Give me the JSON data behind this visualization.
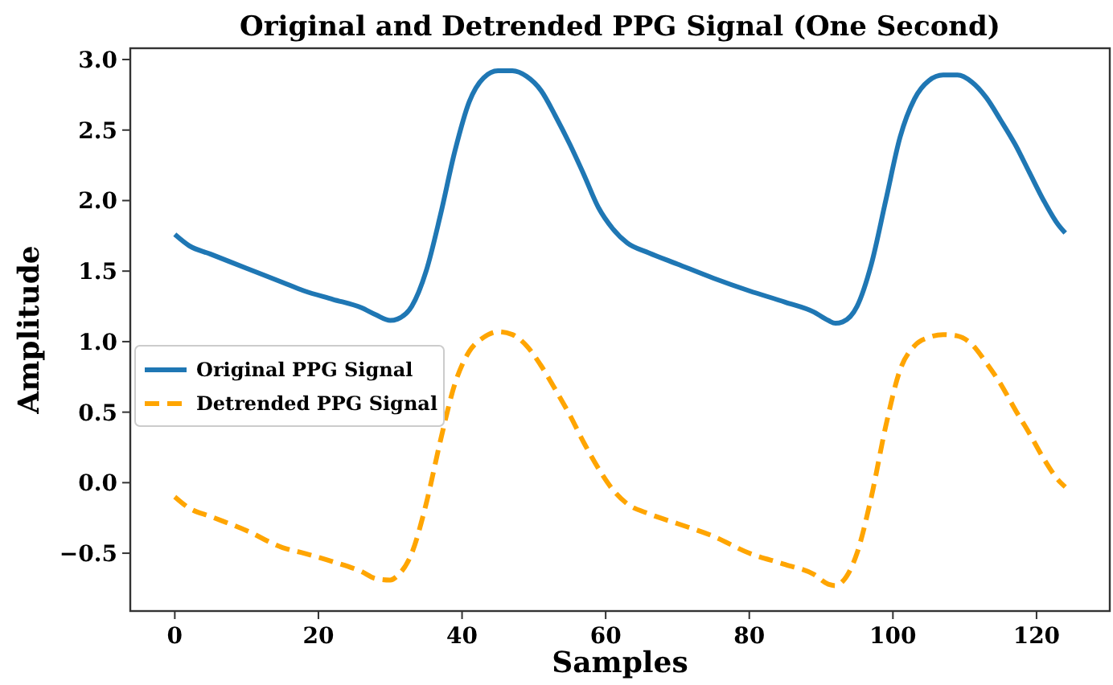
{
  "chart_data": {
    "type": "line",
    "title": "Original and Detrended PPG Signal (One Second)",
    "xlabel": "Samples",
    "ylabel": "Amplitude",
    "x": [
      0,
      2,
      5,
      10,
      15,
      18,
      22,
      26,
      28,
      30,
      31,
      33,
      35,
      37,
      39,
      41,
      43,
      45,
      47,
      49,
      51,
      53,
      55,
      57,
      59,
      61,
      63,
      66,
      70,
      75,
      80,
      85,
      89,
      91,
      92,
      93,
      95,
      97,
      99,
      101,
      103,
      105,
      107,
      109,
      111,
      113,
      115,
      117,
      119,
      121,
      123,
      124
    ],
    "series": [
      {
        "name": "Original PPG Signal",
        "color": "#1f77b4",
        "line_style": "solid",
        "values": [
          1.76,
          1.68,
          1.62,
          1.52,
          1.42,
          1.36,
          1.3,
          1.24,
          1.19,
          1.15,
          1.16,
          1.25,
          1.5,
          1.9,
          2.35,
          2.7,
          2.87,
          2.92,
          2.92,
          2.88,
          2.78,
          2.6,
          2.4,
          2.18,
          1.95,
          1.8,
          1.7,
          1.63,
          1.55,
          1.45,
          1.36,
          1.28,
          1.21,
          1.15,
          1.13,
          1.14,
          1.25,
          1.55,
          2.0,
          2.45,
          2.72,
          2.85,
          2.89,
          2.89,
          2.84,
          2.73,
          2.57,
          2.4,
          2.2,
          2.0,
          1.83,
          1.77
        ]
      },
      {
        "name": "Detrended PPG Signal",
        "color": "#ffa500",
        "line_style": "dashed",
        "values": [
          -0.1,
          -0.18,
          -0.24,
          -0.34,
          -0.46,
          -0.5,
          -0.56,
          -0.63,
          -0.68,
          -0.69,
          -0.66,
          -0.5,
          -0.15,
          0.3,
          0.7,
          0.93,
          1.03,
          1.07,
          1.05,
          0.97,
          0.83,
          0.66,
          0.48,
          0.28,
          0.1,
          -0.05,
          -0.15,
          -0.22,
          -0.29,
          -0.38,
          -0.5,
          -0.58,
          -0.65,
          -0.72,
          -0.73,
          -0.7,
          -0.5,
          -0.1,
          0.4,
          0.8,
          0.97,
          1.03,
          1.05,
          1.04,
          0.98,
          0.85,
          0.7,
          0.52,
          0.35,
          0.17,
          0.02,
          -0.03
        ]
      }
    ],
    "xlim": [
      -6.2,
      130.2
    ],
    "ylim": [
      -0.91,
      3.08
    ],
    "xticks": [
      0,
      20,
      40,
      60,
      80,
      100,
      120
    ],
    "yticks": [
      {
        "value": -0.5,
        "label": "−0.5"
      },
      {
        "value": 0,
        "label": "0.0"
      },
      {
        "value": 0.5,
        "label": "0.5"
      },
      {
        "value": 1,
        "label": "1.0"
      },
      {
        "value": 1.5,
        "label": "1.5"
      },
      {
        "value": 2,
        "label": "2.0"
      },
      {
        "value": 2.5,
        "label": "2.5"
      },
      {
        "value": 3,
        "label": "3.0"
      }
    ],
    "legend": "center left",
    "grid": false
  }
}
